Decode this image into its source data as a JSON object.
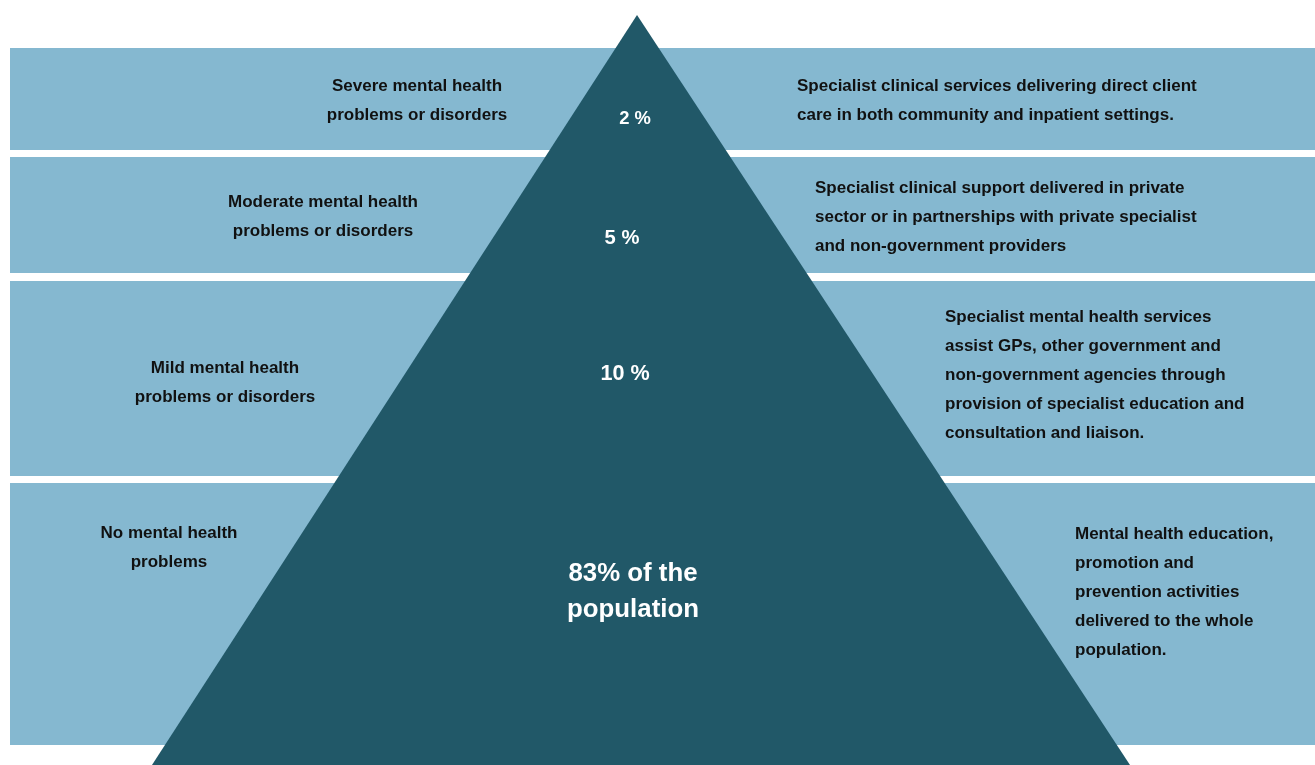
{
  "chart_data": {
    "type": "other",
    "categories": [
      "Severe mental health problems or disorders",
      "Moderate mental health problems or disorders",
      "Mild mental health problems or disorders",
      "No mental health problems"
    ],
    "values": [
      2,
      5,
      10,
      83
    ],
    "colors": [
      "#85b8d0",
      "#85b8d0",
      "#85b8d0",
      "#85b8d0"
    ],
    "value_labels": [
      "2 %",
      "5 %",
      "10 %",
      "83% of the population"
    ],
    "annotations": [
      "Specialist clinical services delivering direct client care in both community and inpatient settings.",
      "Specialist clinical support delivered in private sector or in partnerships with private specialist and non-government providers",
      "Specialist mental health services assist GPs, other government and non-government agencies through provision of specialist education and consultation and liaison.",
      "Mental health education, promotion and prevention activities delivered to the whole population."
    ]
  }
}
